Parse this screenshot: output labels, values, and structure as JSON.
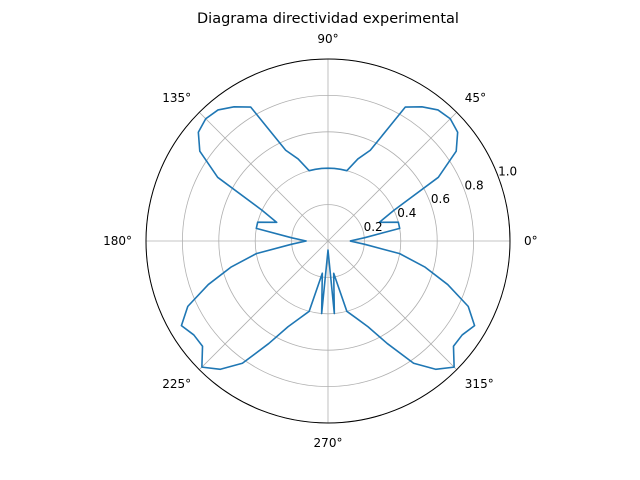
{
  "chart_data": {
    "type": "line",
    "projection": "polar",
    "title": "Diagrama directividad experimental",
    "xlabel": "",
    "ylabel": "",
    "angle_unit": "degrees",
    "theta_ticks": [
      0,
      45,
      90,
      135,
      180,
      225,
      270,
      315
    ],
    "theta_tick_labels": [
      "0°",
      "45°",
      "90°",
      "135°",
      "180°",
      "225°",
      "270°",
      "315°"
    ],
    "r_ticks": [
      0.2,
      0.4,
      0.6,
      0.8,
      1.0
    ],
    "r_tick_labels": [
      "0.2",
      "0.4",
      "0.6",
      "0.8",
      "1.0"
    ],
    "rlim": [
      0,
      1.0
    ],
    "r_label_angle": 22.5,
    "grid": true,
    "legend": false,
    "series": [
      {
        "color": "#1f77b4",
        "theta": [
          0,
          5,
          10,
          15,
          20,
          25,
          30,
          35,
          40,
          45,
          50,
          55,
          60,
          65,
          70,
          75,
          80,
          85,
          90,
          95,
          100,
          105,
          110,
          115,
          120,
          125,
          130,
          135,
          140,
          145,
          150,
          155,
          160,
          165,
          170,
          175,
          180,
          185,
          190,
          195,
          200,
          205,
          210,
          215,
          220,
          225,
          230,
          235,
          240,
          245,
          250,
          255,
          260,
          265,
          270,
          275,
          280,
          285,
          290,
          295,
          300,
          305,
          310,
          315,
          320,
          325,
          330,
          335,
          340,
          345,
          350,
          355,
          360
        ],
        "r": [
          0.12,
          0.2,
          0.4,
          0.4,
          0.3,
          0.4,
          0.7,
          0.86,
          0.93,
          0.95,
          0.94,
          0.9,
          0.85,
          0.55,
          0.48,
          0.4,
          0.4,
          0.4,
          0.4,
          0.4,
          0.4,
          0.4,
          0.48,
          0.55,
          0.85,
          0.9,
          0.94,
          0.95,
          0.93,
          0.86,
          0.7,
          0.4,
          0.3,
          0.4,
          0.4,
          0.2,
          0.12,
          0.2,
          0.4,
          0.55,
          0.7,
          0.85,
          0.93,
          0.9,
          0.9,
          0.98,
          0.92,
          0.82,
          0.65,
          0.52,
          0.45,
          0.4,
          0.18,
          0.4,
          0.05,
          0.4,
          0.18,
          0.4,
          0.45,
          0.52,
          0.65,
          0.82,
          0.92,
          0.98,
          0.9,
          0.9,
          0.93,
          0.85,
          0.7,
          0.55,
          0.4,
          0.2,
          0.12
        ]
      }
    ]
  }
}
